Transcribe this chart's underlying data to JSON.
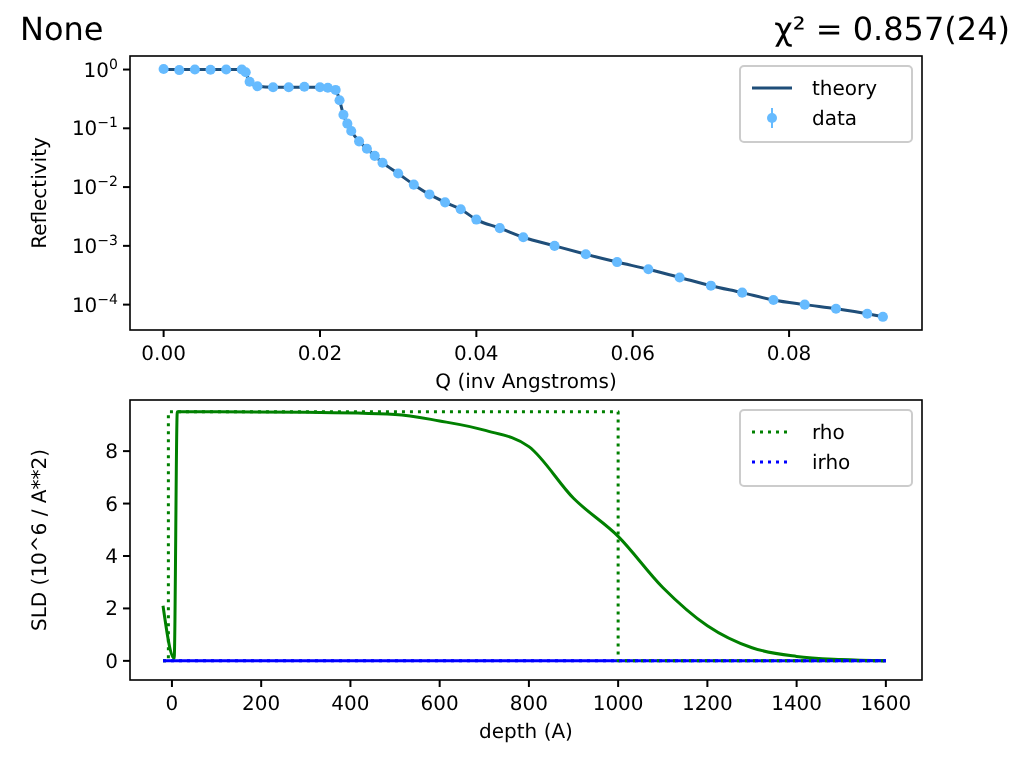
{
  "chart_data": [
    {
      "type": "line",
      "title": "None",
      "annotations": [
        "χ² = 0.857(24)"
      ],
      "xlabel": "Q (inv Angstroms)",
      "ylabel": "Reflectivity",
      "log": "y",
      "legend": "top right",
      "grid": false,
      "xlim": [
        -0.0043,
        0.097
      ],
      "xticks": [
        {
          "value": 0,
          "label": "0.00"
        },
        {
          "value": 0.02,
          "label": "0.02"
        },
        {
          "value": 0.04,
          "label": "0.04"
        },
        {
          "value": 0.06,
          "label": "0.06"
        },
        {
          "value": 0.08,
          "label": "0.08"
        }
      ],
      "ylim": [
        3.7e-05,
        1.7
      ],
      "yticks": [
        {
          "value": 0.0001,
          "label": "10$^{−4}$"
        },
        {
          "value": 0.001,
          "label": "10$^{−3}$"
        },
        {
          "value": 0.01,
          "label": "10$^{−2}$"
        },
        {
          "value": 0.1,
          "label": "10$^{−1}$"
        },
        {
          "value": 1,
          "label": "10$^{0}$"
        }
      ],
      "x": [
        0,
        0.002,
        0.004,
        0.006,
        0.008,
        0.01,
        0.0105,
        0.011,
        0.012,
        0.014,
        0.016,
        0.018,
        0.02,
        0.021,
        0.022,
        0.0225,
        0.023,
        0.0235,
        0.024,
        0.025,
        0.026,
        0.027,
        0.028,
        0.03,
        0.032,
        0.034,
        0.036,
        0.038,
        0.04,
        0.043,
        0.046,
        0.05,
        0.054,
        0.058,
        0.062,
        0.066,
        0.07,
        0.074,
        0.078,
        0.082,
        0.086,
        0.09,
        0.092
      ],
      "series": [
        {
          "name": "theory",
          "type": "line",
          "color": "#1f4e79",
          "line_style": "solid",
          "marker": "none",
          "values": [
            1,
            1,
            1,
            1,
            1,
            1,
            0.9,
            0.62,
            0.52,
            0.5,
            0.5,
            0.5,
            0.5,
            0.49,
            0.45,
            0.3,
            0.17,
            0.12,
            0.09,
            0.06,
            0.045,
            0.034,
            0.026,
            0.017,
            0.011,
            0.0075,
            0.0055,
            0.0042,
            0.0028,
            0.002,
            0.0014,
            0.001,
            0.00072,
            0.00053,
            0.0004,
            0.00029,
            0.00021,
            0.00016,
            0.00012,
            0.0001,
            8.5e-05,
            7e-05,
            6.2e-05
          ]
        },
        {
          "name": "data",
          "type": "scatter",
          "color": "#66bbff",
          "marker": "circle",
          "values": [
            1.02,
            0.98,
            1,
            0.99,
            1,
            1,
            0.9,
            0.62,
            0.52,
            0.5,
            0.5,
            0.51,
            0.5,
            0.49,
            0.45,
            0.3,
            0.17,
            0.12,
            0.09,
            0.06,
            0.045,
            0.034,
            0.026,
            0.017,
            0.011,
            0.0075,
            0.0055,
            0.0042,
            0.0028,
            0.002,
            0.0014,
            0.001,
            0.00072,
            0.00053,
            0.0004,
            0.00029,
            0.00021,
            0.00016,
            0.00012,
            0.0001,
            8.5e-05,
            7e-05,
            6.2e-05
          ]
        }
      ]
    },
    {
      "type": "line",
      "xlabel": "depth (A)",
      "ylabel": "SLD (10^6 / A**2)",
      "legend": "top right",
      "grid": false,
      "xlim": [
        -94,
        1681
      ],
      "xticks": [
        0,
        200,
        400,
        600,
        800,
        1000,
        1200,
        1400,
        1600
      ],
      "ylim": [
        -0.73,
        9.95
      ],
      "yticks": [
        0,
        2,
        4,
        6,
        8
      ],
      "series": [
        {
          "type": "line",
          "color": "#008000",
          "line_style": "solid",
          "marker": "none",
          "x": [
            -20,
            5,
            12,
            100,
            300,
            500,
            600,
            700,
            800,
            900,
            1000,
            1100,
            1200,
            1300,
            1400,
            1500,
            1600
          ],
          "values": [
            2.1,
            0.1,
            9.5,
            9.5,
            9.48,
            9.4,
            9.15,
            8.8,
            8.17,
            6.2,
            4.75,
            2.8,
            1.34,
            0.5,
            0.17,
            0.05,
            0
          ]
        },
        {
          "type": "line",
          "color": "#0000ff",
          "line_style": "solid",
          "marker": "none",
          "x": [
            -20,
            1600
          ],
          "values": [
            0,
            0
          ]
        },
        {
          "name": "rho",
          "type": "line",
          "color": "#008000",
          "line_style": "dotted",
          "marker": "none",
          "x": [
            -20,
            -8,
            -8,
            1000,
            1000,
            1600
          ],
          "values": [
            0,
            0,
            9.5,
            9.5,
            0,
            0
          ]
        },
        {
          "name": "irho",
          "type": "line",
          "color": "#0000ff",
          "line_style": "dotted",
          "marker": "none",
          "x": [
            -20,
            1600
          ],
          "values": [
            0,
            0
          ]
        }
      ]
    }
  ]
}
